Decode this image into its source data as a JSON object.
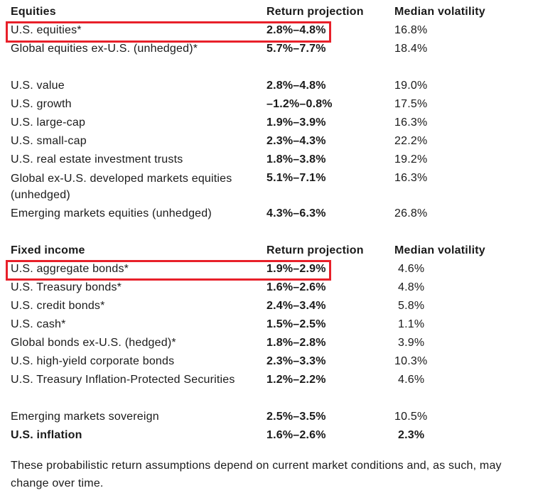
{
  "equities": {
    "header": {
      "category": "Equities",
      "return": "Return projection",
      "volatility": "Median volatility"
    },
    "rows": [
      {
        "name": "U.S. equities*",
        "return": "2.8%–4.8%",
        "volatility": "16.8%"
      },
      {
        "name": "Global equities ex-U.S. (unhedged)*",
        "return": "5.7%–7.7%",
        "volatility": "18.4%"
      },
      {
        "name": "U.S. value",
        "return": "2.8%–4.8%",
        "volatility": "19.0%"
      },
      {
        "name": "U.S. growth",
        "return": "–1.2%–0.8%",
        "volatility": "17.5%"
      },
      {
        "name": "U.S. large-cap",
        "return": "1.9%–3.9%",
        "volatility": "16.3%"
      },
      {
        "name": "U.S. small-cap",
        "return": "2.3%–4.3%",
        "volatility": "22.2%"
      },
      {
        "name": "U.S. real estate investment trusts",
        "return": "1.8%–3.8%",
        "volatility": "19.2%"
      },
      {
        "name": "Global ex-U.S. developed markets equities (unhedged)",
        "return": "5.1%–7.1%",
        "volatility": "16.3%"
      },
      {
        "name": "Emerging markets equities (unhedged)",
        "return": "4.3%–6.3%",
        "volatility": "26.8%"
      }
    ]
  },
  "fixed_income": {
    "header": {
      "category": "Fixed income",
      "return": "Return projection",
      "volatility": "Median volatility"
    },
    "rows": [
      {
        "name": "U.S. aggregate bonds*",
        "return": "1.9%–2.9%",
        "volatility": "4.6%"
      },
      {
        "name": "U.S. Treasury bonds*",
        "return": "1.6%–2.6%",
        "volatility": "4.8%"
      },
      {
        "name": "U.S. credit bonds*",
        "return": "2.4%–3.4%",
        "volatility": "5.8%"
      },
      {
        "name": "U.S. cash*",
        "return": "1.5%–2.5%",
        "volatility": "1.1%"
      },
      {
        "name": "Global bonds ex-U.S. (hedged)*",
        "return": "1.8%–2.8%",
        "volatility": "3.9%"
      },
      {
        "name": "U.S. high-yield corporate bonds",
        "return": "2.3%–3.3%",
        "volatility": "10.3%"
      },
      {
        "name": "U.S. Treasury Inflation-Protected Securities",
        "return": "1.2%–2.2%",
        "volatility": "4.6%"
      },
      {
        "name": "Emerging markets sovereign",
        "return": "2.5%–3.5%",
        "volatility": "10.5%"
      },
      {
        "name": "U.S. inflation",
        "return": "1.6%–2.6%",
        "volatility": "2.3%"
      }
    ]
  },
  "footnote": "These probabilistic return assumptions depend on current market conditions and, as such, may change over time.",
  "colors": {
    "highlight": "#e8202a",
    "text": "#1a1a1a"
  }
}
